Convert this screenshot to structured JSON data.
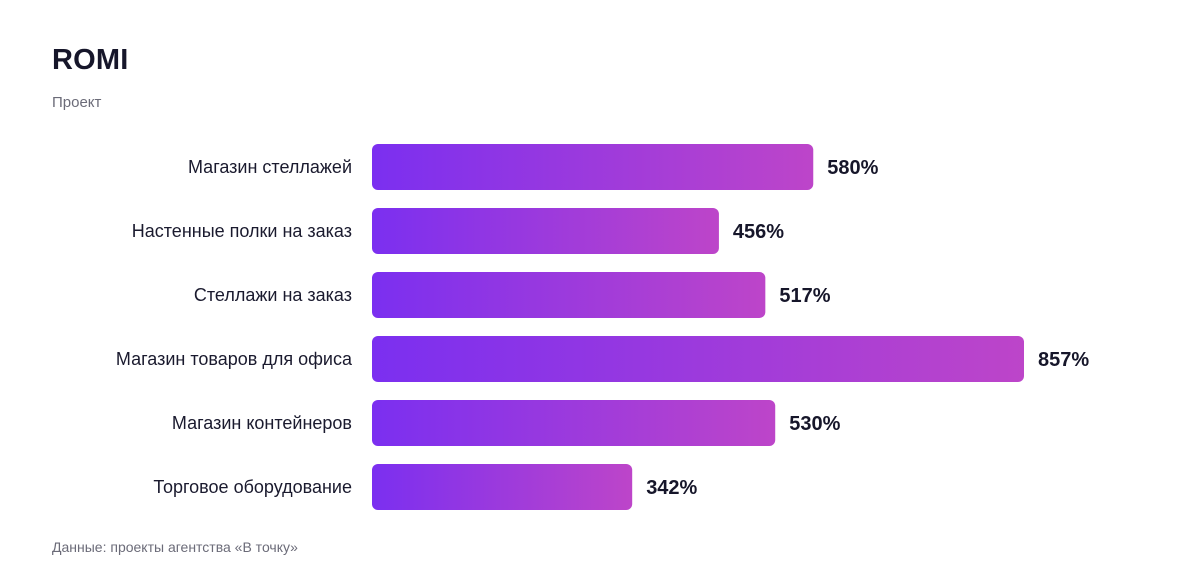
{
  "header": {
    "title": "ROMI",
    "subtitle": "Проект"
  },
  "footnote": "Данные: проекты агентства «В точку»",
  "colors": {
    "bar_start": "#7b2ff0",
    "bar_end": "#bd45c9"
  },
  "chart_data": {
    "type": "bar",
    "orientation": "horizontal",
    "title": "ROMI",
    "categories": [
      "Магазин стеллажей",
      "Настенные полки на заказ",
      "Стеллажи на заказ",
      "Магазин товаров для офиса",
      "Магазин контейнеров",
      "Торговое оборудование"
    ],
    "values": [
      580,
      456,
      517,
      857,
      530,
      342
    ],
    "value_labels": [
      "580%",
      "456%",
      "517%",
      "857%",
      "530%",
      "342%"
    ],
    "unit": "%",
    "grid": false,
    "legend": "none"
  }
}
